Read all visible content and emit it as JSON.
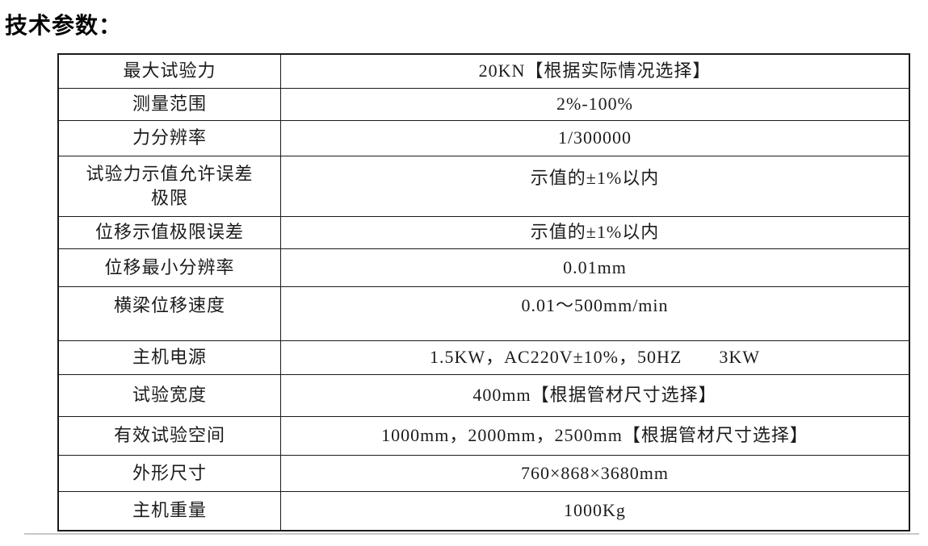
{
  "page": {
    "title": "技术参数："
  },
  "table": {
    "rows": [
      {
        "label": "最大试验力",
        "value": "20KN【根据实际情况选择】"
      },
      {
        "label": "测量范围",
        "value": "2%-100%"
      },
      {
        "label": "力分辨率",
        "value": "1/300000"
      },
      {
        "label": "试验力示值允许误差\n极限",
        "value": "示值的±1%以内"
      },
      {
        "label": "位移示值极限误差",
        "value": "示值的±1%以内"
      },
      {
        "label": "位移最小分辨率",
        "value": "0.01mm"
      },
      {
        "label": "横梁位移速度",
        "value": "0.01～500mm/min"
      },
      {
        "label": "主机电源",
        "value": "1.5KW，AC220V±10%，50HZ　　3KW"
      },
      {
        "label": "试验宽度",
        "value": "400mm【根据管材尺寸选择】"
      },
      {
        "label": "有效试验空间",
        "value": "1000mm，2000mm，2500mm【根据管材尺寸选择】"
      },
      {
        "label": "外形尺寸",
        "value": "760×868×3680mm"
      },
      {
        "label": "主机重量",
        "value": "1000Kg"
      }
    ]
  }
}
